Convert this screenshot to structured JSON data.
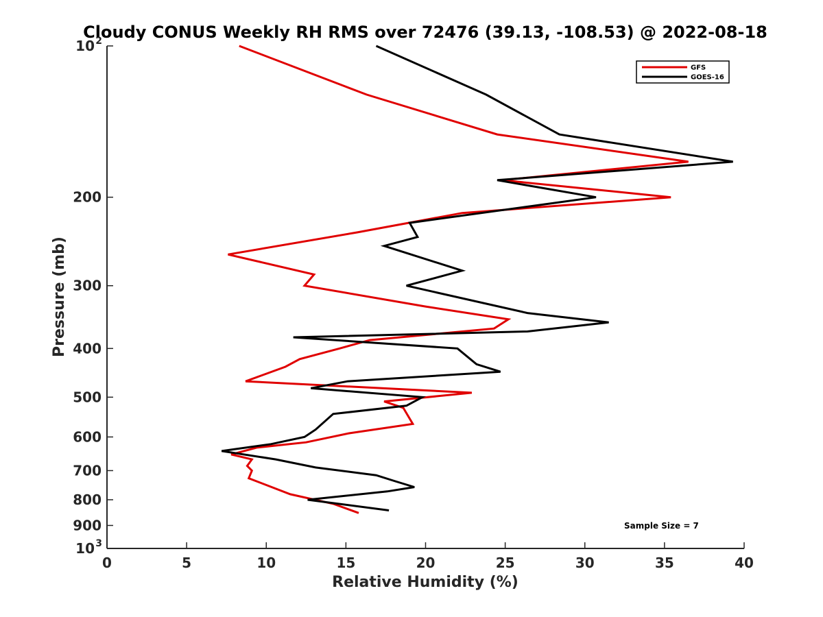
{
  "chart_data": {
    "type": "line",
    "title": "Cloudy CONUS Weekly RH RMS over 72476 (39.13, -108.53) @ 2022-08-18",
    "xlabel": "Relative Humidity (%)",
    "ylabel": "Pressure (mb)",
    "xlim": [
      0,
      40
    ],
    "ylim": [
      100,
      1000
    ],
    "y_scale": "log",
    "y_reversed": true,
    "x_ticks": [
      "0",
      "5",
      "10",
      "15",
      "20",
      "25",
      "30",
      "35",
      "40"
    ],
    "y_ticks": [
      {
        "value": 100,
        "label": "10",
        "sup": "2"
      },
      {
        "value": 200,
        "label": "200",
        "sup": ""
      },
      {
        "value": 300,
        "label": "300",
        "sup": ""
      },
      {
        "value": 400,
        "label": "400",
        "sup": ""
      },
      {
        "value": 500,
        "label": "500",
        "sup": ""
      },
      {
        "value": 600,
        "label": "600",
        "sup": ""
      },
      {
        "value": 700,
        "label": "700",
        "sup": ""
      },
      {
        "value": 800,
        "label": "800",
        "sup": ""
      },
      {
        "value": 900,
        "label": "900",
        "sup": ""
      },
      {
        "value": 1000,
        "label": "10",
        "sup": "3"
      }
    ],
    "legend_position": "top-right",
    "annotation": "Sample Size = 7",
    "series": [
      {
        "name": "GFS",
        "color": "#e00000",
        "points": [
          [
            8.3,
            100
          ],
          [
            16.3,
            125
          ],
          [
            24.5,
            150
          ],
          [
            36.5,
            170
          ],
          [
            24.8,
            185
          ],
          [
            35.4,
            200
          ],
          [
            22.3,
            215
          ],
          [
            15.7,
            235
          ],
          [
            7.6,
            260
          ],
          [
            13,
            285
          ],
          [
            12.4,
            300
          ],
          [
            20,
            330
          ],
          [
            25.2,
            350
          ],
          [
            24.3,
            365
          ],
          [
            16.5,
            385
          ],
          [
            14.6,
            400
          ],
          [
            12.1,
            420
          ],
          [
            11.2,
            435
          ],
          [
            8.7,
            465
          ],
          [
            22.9,
            490
          ],
          [
            17.4,
            510
          ],
          [
            18.6,
            525
          ],
          [
            19.2,
            565
          ],
          [
            15.2,
            590
          ],
          [
            12.5,
            615
          ],
          [
            9.4,
            630
          ],
          [
            7.8,
            650
          ],
          [
            9.1,
            665
          ],
          [
            8.8,
            685
          ],
          [
            9.1,
            700
          ],
          [
            8.9,
            725
          ],
          [
            10.1,
            750
          ],
          [
            11.5,
            780
          ],
          [
            14.2,
            815
          ],
          [
            15.8,
            850
          ]
        ]
      },
      {
        "name": "GOES-16",
        "color": "#000000",
        "points": [
          [
            16.9,
            100
          ],
          [
            23.8,
            125
          ],
          [
            28.4,
            150
          ],
          [
            39.3,
            170
          ],
          [
            24.5,
            185
          ],
          [
            30.7,
            200
          ],
          [
            19,
            225
          ],
          [
            19.5,
            240
          ],
          [
            17.4,
            250
          ],
          [
            22.3,
            280
          ],
          [
            18.8,
            300
          ],
          [
            26.4,
            340
          ],
          [
            31.5,
            355
          ],
          [
            26.4,
            370
          ],
          [
            11.7,
            380
          ],
          [
            22,
            400
          ],
          [
            23.2,
            430
          ],
          [
            24.7,
            445
          ],
          [
            15.1,
            465
          ],
          [
            12.8,
            480
          ],
          [
            19.8,
            500
          ],
          [
            18.8,
            520
          ],
          [
            14.2,
            540
          ],
          [
            13.1,
            580
          ],
          [
            12.4,
            600
          ],
          [
            10.3,
            620
          ],
          [
            7.2,
            640
          ],
          [
            10.6,
            665
          ],
          [
            13.1,
            690
          ],
          [
            16.9,
            715
          ],
          [
            18.1,
            735
          ],
          [
            19.3,
            755
          ],
          [
            17.6,
            770
          ],
          [
            12.6,
            800
          ],
          [
            17.7,
            840
          ]
        ]
      }
    ]
  }
}
